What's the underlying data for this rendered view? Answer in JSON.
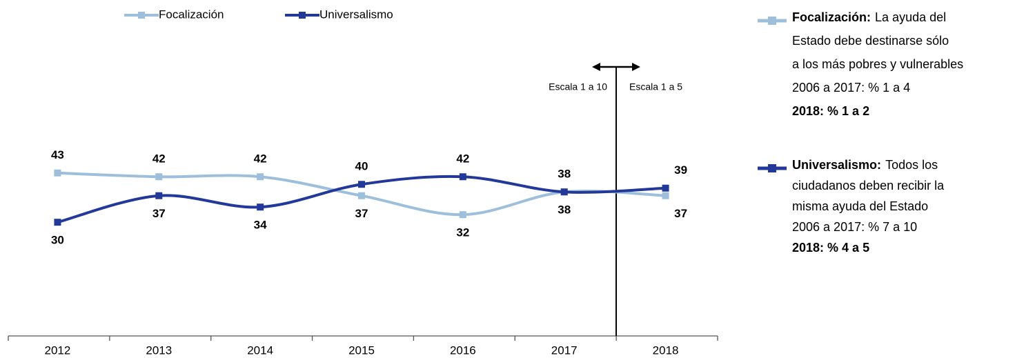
{
  "chart_data": {
    "type": "line",
    "categories": [
      "2012",
      "2013",
      "2014",
      "2015",
      "2016",
      "2017",
      "2018"
    ],
    "series": [
      {
        "name": "Focalización",
        "color": "#9dbfdc",
        "values": [
          43,
          42,
          42,
          37,
          32,
          38,
          37
        ]
      },
      {
        "name": "Universalismo",
        "color": "#23399a",
        "values": [
          30,
          37,
          34,
          40,
          42,
          38,
          39
        ]
      }
    ],
    "ylim": [
      0,
      85
    ],
    "scale_notes": [
      "Escala 1 a 10",
      "Escala 1 a 5"
    ],
    "descriptions": [
      {
        "label": "Focalización:",
        "lines": [
          "La ayuda del",
          "Estado debe destinarse sólo",
          "a los más pobres y vulnerables",
          "2006 a 2017: % 1 a 4",
          "2018: % 1 a 2"
        ]
      },
      {
        "label": "Universalismo:",
        "lines": [
          "Todos los",
          "ciudadanos deben recibir la",
          "misma ayuda del Estado",
          "2006 a 2017: % 7 a 10",
          "2018: % 4 a 5"
        ]
      }
    ]
  }
}
